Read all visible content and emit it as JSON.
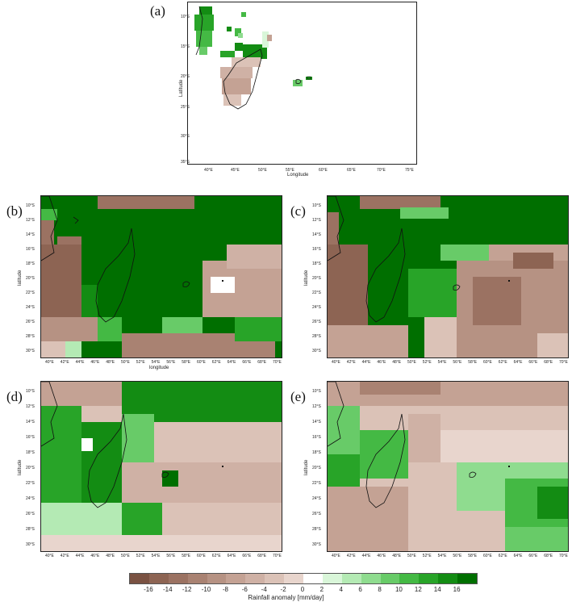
{
  "panels": [
    {
      "id": "a",
      "label": "(a)",
      "xlabel": "Longitude",
      "ylabel": "Latitude",
      "x_ticks": [
        "40°E",
        "45°E",
        "50°E",
        "55°E",
        "60°E",
        "65°E",
        "70°E",
        "75°E"
      ],
      "y_ticks": [
        "10°S",
        "15°S",
        "20°S",
        "25°S",
        "30°S",
        "35°S"
      ]
    },
    {
      "id": "b",
      "label": "(b)",
      "xlabel": "longitude",
      "ylabel": "latitude",
      "x_ticks": [
        "40°E",
        "42°E",
        "44°E",
        "46°E",
        "48°E",
        "50°E",
        "52°E",
        "54°E",
        "56°E",
        "58°E",
        "60°E",
        "62°E",
        "64°E",
        "66°E",
        "68°E",
        "70°E"
      ],
      "y_ticks": [
        "10°S",
        "12°S",
        "14°S",
        "16°S",
        "18°S",
        "20°S",
        "22°S",
        "24°S",
        "26°S",
        "28°S",
        "30°S"
      ]
    },
    {
      "id": "c",
      "label": "(c)",
      "xlabel": "",
      "ylabel": "latitude",
      "x_ticks": [
        "40°E",
        "42°E",
        "44°E",
        "46°E",
        "48°E",
        "50°E",
        "52°E",
        "54°E",
        "56°E",
        "58°E",
        "60°E",
        "62°E",
        "64°E",
        "66°E",
        "68°E",
        "70°E"
      ],
      "y_ticks": [
        "10°S",
        "12°S",
        "14°S",
        "16°S",
        "18°S",
        "20°S",
        "22°S",
        "24°S",
        "26°S",
        "28°S",
        "30°S"
      ]
    },
    {
      "id": "d",
      "label": "(d)",
      "xlabel": "",
      "ylabel": "latitude",
      "x_ticks": [
        "40°E",
        "42°E",
        "44°E",
        "46°E",
        "48°E",
        "50°E",
        "52°E",
        "54°E",
        "56°E",
        "58°E",
        "60°E",
        "62°E",
        "64°E",
        "66°E",
        "68°E",
        "70°E"
      ],
      "y_ticks": [
        "10°S",
        "12°S",
        "14°S",
        "16°S",
        "18°S",
        "20°S",
        "22°S",
        "24°S",
        "26°S",
        "28°S",
        "30°S"
      ]
    },
    {
      "id": "e",
      "label": "(e)",
      "xlabel": "",
      "ylabel": "latitude",
      "x_ticks": [
        "40°E",
        "42°E",
        "44°E",
        "46°E",
        "48°E",
        "50°E",
        "52°E",
        "54°E",
        "56°E",
        "58°E",
        "60°E",
        "62°E",
        "64°E",
        "66°E",
        "68°E",
        "70°E"
      ],
      "y_ticks": [
        "10°S",
        "12°S",
        "14°S",
        "16°S",
        "18°S",
        "20°S",
        "22°S",
        "24°S",
        "26°S",
        "28°S",
        "30°S"
      ]
    }
  ],
  "colorbar": {
    "title": "Rainfall anomaly [mm/day]",
    "ticks": [
      "-16",
      "-14",
      "-12",
      "-10",
      "-8",
      "-6",
      "-4",
      "-2",
      "0",
      "2",
      "4",
      "6",
      "8",
      "10",
      "12",
      "14",
      "16"
    ],
    "colors": [
      "#7a5242",
      "#8d6453",
      "#9b7262",
      "#a98272",
      "#b69283",
      "#c4a294",
      "#cfb1a5",
      "#dbc2b7",
      "#e8d5cd",
      "#ffffff",
      "#d9f6d9",
      "#b4eab4",
      "#8fdc8f",
      "#68cb68",
      "#44b944",
      "#28a428",
      "#138c13",
      "#006f00"
    ]
  }
}
